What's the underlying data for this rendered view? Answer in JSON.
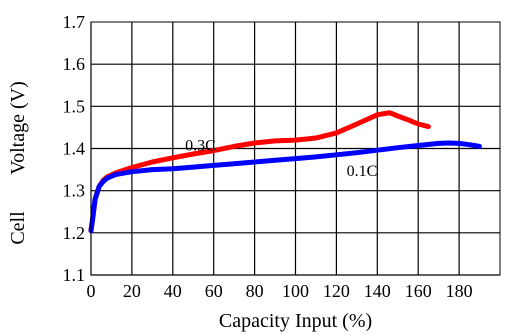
{
  "chart_data": {
    "type": "line",
    "title": "",
    "xlabel": "Capacity Input (%)",
    "ylabel_parts": [
      "Cell",
      "Voltage (V)"
    ],
    "xlim": [
      0,
      200
    ],
    "ylim": [
      1.1,
      1.7
    ],
    "xticks": [
      0,
      20,
      40,
      60,
      80,
      100,
      120,
      140,
      160,
      180
    ],
    "yticks": [
      1.1,
      1.2,
      1.3,
      1.4,
      1.5,
      1.6,
      1.7
    ],
    "ytick_labels": [
      "1.1",
      "1.2",
      "1.3",
      "1.4",
      "1.5",
      "1.6",
      "1.7"
    ],
    "xgrid": [
      0,
      20,
      40,
      60,
      80,
      100,
      120,
      140,
      160,
      180
    ],
    "ygrid": [
      1.1,
      1.2,
      1.3,
      1.4,
      1.5,
      1.6
    ],
    "grid": true,
    "series": [
      {
        "name": "0.3C",
        "color": "#ff0000",
        "x": [
          0,
          1,
          2,
          4,
          6,
          8,
          12,
          20,
          30,
          40,
          50,
          60,
          70,
          80,
          90,
          100,
          110,
          120,
          130,
          140,
          146,
          150,
          155,
          160,
          165
        ],
        "y": [
          1.205,
          1.24,
          1.28,
          1.31,
          1.325,
          1.333,
          1.342,
          1.355,
          1.368,
          1.378,
          1.387,
          1.395,
          1.405,
          1.413,
          1.418,
          1.42,
          1.425,
          1.437,
          1.458,
          1.48,
          1.485,
          1.477,
          1.468,
          1.458,
          1.452
        ]
      },
      {
        "name": "0.1C",
        "color": "#0000ff",
        "x": [
          0,
          1,
          2,
          4,
          6,
          8,
          12,
          20,
          30,
          40,
          50,
          60,
          70,
          80,
          90,
          100,
          110,
          120,
          130,
          140,
          150,
          160,
          170,
          175,
          180,
          185,
          190
        ],
        "y": [
          1.205,
          1.24,
          1.28,
          1.31,
          1.322,
          1.33,
          1.338,
          1.345,
          1.35,
          1.352,
          1.356,
          1.36,
          1.364,
          1.368,
          1.372,
          1.376,
          1.38,
          1.385,
          1.39,
          1.396,
          1.402,
          1.407,
          1.412,
          1.413,
          1.412,
          1.409,
          1.405
        ]
      }
    ],
    "annotations": [
      {
        "text": "0.3C",
        "x": 46,
        "y": 1.395
      },
      {
        "text": "0.1C",
        "x": 125,
        "y": 1.335
      }
    ]
  }
}
